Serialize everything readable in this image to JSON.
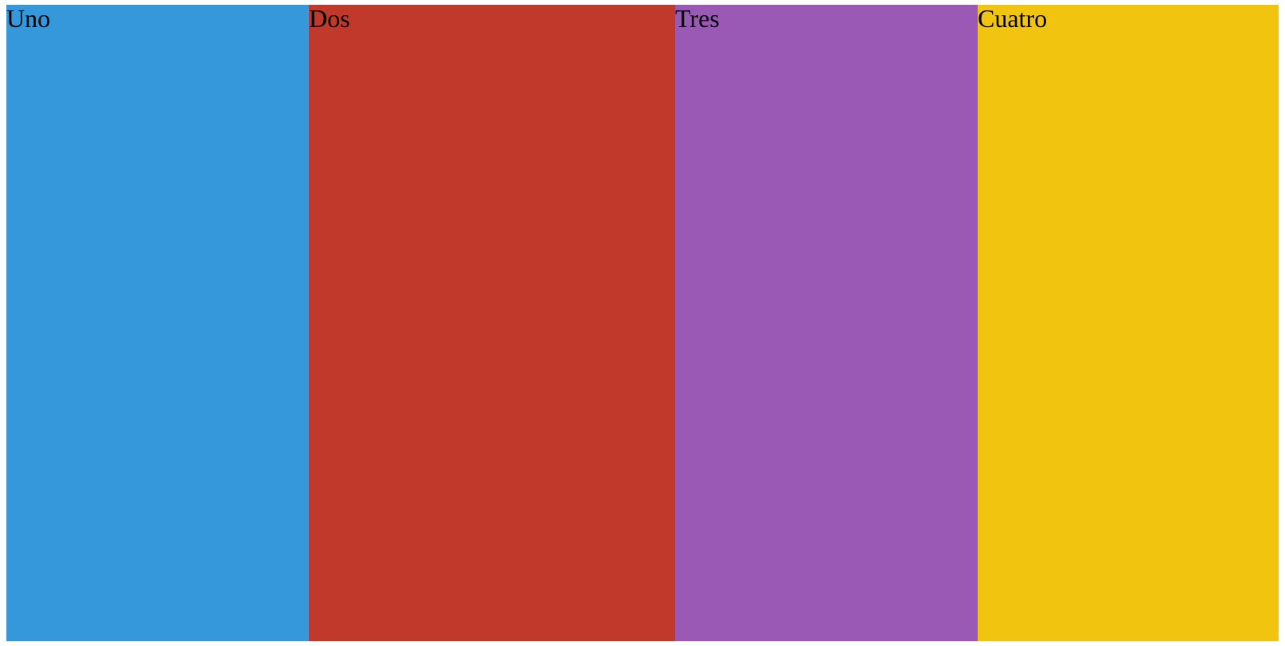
{
  "panels": [
    {
      "label": "Uno",
      "color": "#3498db"
    },
    {
      "label": "Dos",
      "color": "#c0392b"
    },
    {
      "label": "Tres",
      "color": "#9b59b6"
    },
    {
      "label": "Cuatro",
      "color": "#f1c40f"
    }
  ]
}
